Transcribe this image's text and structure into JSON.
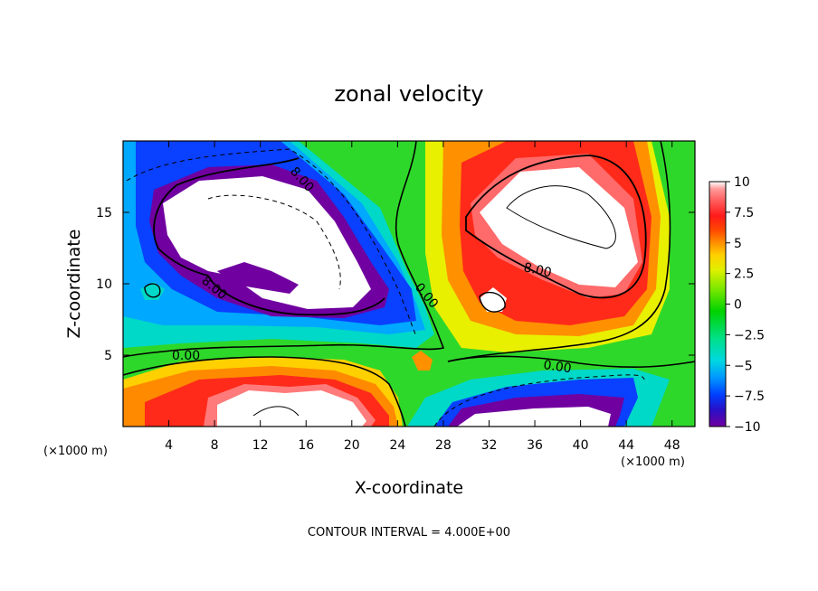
{
  "chart_data": {
    "type": "heatmap",
    "title": "zonal velocity",
    "xlabel": "X-coordinate",
    "ylabel": "Z-coordinate",
    "x_unit": "(×1000 m)",
    "xlim": [
      0,
      50
    ],
    "ylim": [
      0,
      20
    ],
    "x_ticks": [
      4,
      8,
      12,
      16,
      20,
      24,
      28,
      32,
      36,
      40,
      44,
      48
    ],
    "y_ticks": [
      5,
      10,
      15
    ],
    "colorbar": {
      "ticks": [
        "10",
        "7.5",
        "5",
        "2.5",
        "0",
        "−2.5",
        "−5",
        "−7.5",
        "−10"
      ],
      "range": [
        -10,
        10
      ],
      "colors": [
        "#7000a0",
        "#2810c8",
        "#0040ff",
        "#0098ff",
        "#00d8e0",
        "#00e088",
        "#00d200",
        "#78e800",
        "#e0f000",
        "#ffd000",
        "#ff9000",
        "#ff4a00",
        "#ff1a1a",
        "#ff5a5a",
        "#ff9a9a",
        "#ffffff"
      ]
    },
    "contour_interval": "CONTOUR INTERVAL = 4.000E+00",
    "contour_labels": [
      "8.00",
      "8.00",
      "0.00",
      "0.00",
      "8.00",
      "0.00",
      "0.00"
    ],
    "features": [
      {
        "name": "upper-left negative core",
        "x": 11,
        "z": 15,
        "value": -10
      },
      {
        "name": "upper-right positive core",
        "x": 38,
        "z": 14,
        "value": 10
      },
      {
        "name": "lower-left positive band",
        "x": 14,
        "z": 2,
        "value": 10
      },
      {
        "name": "lower-right negative band",
        "x": 36,
        "z": 1,
        "value": -10
      }
    ]
  }
}
